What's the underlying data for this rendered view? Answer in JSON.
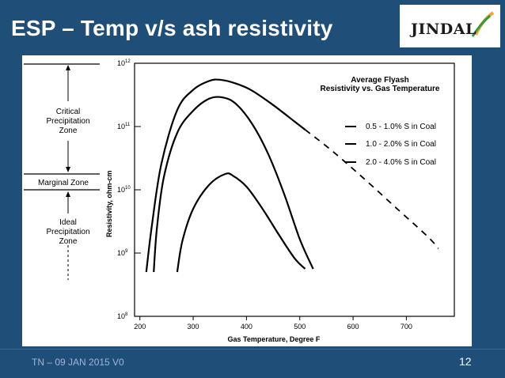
{
  "slide": {
    "title": "ESP – Temp v/s ash resistivity",
    "footer": "TN – 09 JAN 2015 V0",
    "page_number": "12",
    "logo_text": "JINDAL",
    "colors": {
      "background": "#1f4e79",
      "logo_accent": "#f5a623",
      "logo_green": "#2e9b3e"
    }
  },
  "zones": {
    "critical": [
      "Critical",
      "Precipitation",
      "Zone"
    ],
    "marginal": "Marginal Zone",
    "ideal": [
      "Ideal",
      "Precipitation",
      "Zone"
    ]
  },
  "chart_data": {
    "type": "line",
    "title_lines": [
      "Average Flyash",
      "Resistivity vs. Gas Temperature"
    ],
    "xlabel": "Gas Temperature, Degree F",
    "ylabel": "Resistivity, ohm-cm",
    "xlim": [
      190,
      790
    ],
    "ylim_log10": [
      8,
      12
    ],
    "y_scale": "log",
    "x_ticks": [
      "200",
      "300",
      "400",
      "500",
      "600",
      "700"
    ],
    "y_ticks": [
      {
        "base": "10",
        "exp": "12"
      },
      {
        "base": "10",
        "exp": "11"
      },
      {
        "base": "10",
        "exp": "10"
      },
      {
        "base": "10",
        "exp": "9"
      },
      {
        "base": "10",
        "exp": "8"
      }
    ],
    "legend_placement": "top-right",
    "series": [
      {
        "name": "0.5 - 1.0% S in Coal",
        "x": [
          212,
          222,
          240,
          270,
          300,
          330,
          350,
          380,
          410,
          450,
          490,
          510
        ],
        "y": [
          8.7,
          9.4,
          10.4,
          11.26,
          11.58,
          11.72,
          11.74,
          11.68,
          11.57,
          11.34,
          11.08,
          10.95
        ]
      },
      {
        "name": "",
        "style": "dashed",
        "x": [
          510,
          560,
          620,
          680,
          740,
          760
        ],
        "y": [
          10.95,
          10.62,
          10.18,
          9.72,
          9.26,
          9.07
        ]
      },
      {
        "name": "1.0 - 2.0% S in Coal",
        "x": [
          226,
          232,
          245,
          270,
          300,
          330,
          355,
          380,
          410,
          440,
          470,
          500,
          525
        ],
        "y": [
          8.7,
          9.4,
          10.2,
          10.9,
          11.25,
          11.44,
          11.46,
          11.36,
          11.05,
          10.58,
          9.95,
          9.22,
          8.75
        ]
      },
      {
        "name": "2.0 - 4.0% S in Coal",
        "x": [
          270,
          280,
          300,
          330,
          360,
          375,
          400,
          430,
          460,
          490,
          510
        ],
        "y": [
          8.7,
          9.2,
          9.7,
          10.08,
          10.25,
          10.22,
          10.05,
          9.7,
          9.3,
          8.92,
          8.75
        ]
      }
    ]
  }
}
